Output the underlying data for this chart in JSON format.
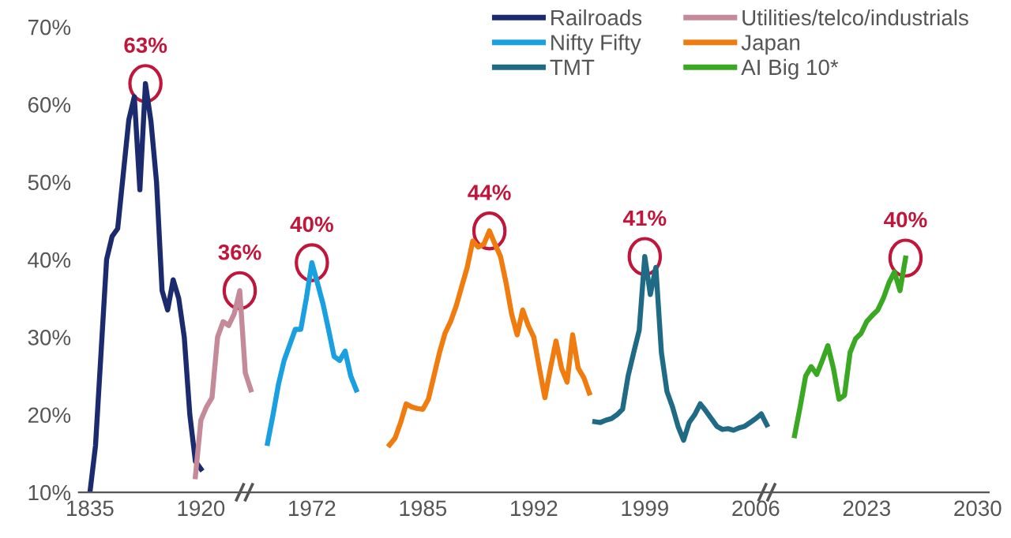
{
  "chart_data": {
    "type": "line",
    "categories": [
      "1835",
      null,
      null,
      null,
      null,
      null,
      null,
      null,
      null,
      null,
      null,
      null,
      null,
      null,
      null,
      null,
      null,
      null,
      null,
      null,
      "1920",
      null,
      null,
      null,
      null,
      null,
      null,
      null,
      null,
      null,
      null,
      null,
      null,
      null,
      null,
      null,
      null,
      null,
      null,
      null,
      "1972",
      null,
      null,
      null,
      null,
      null,
      null,
      null,
      null,
      null,
      null,
      null,
      null,
      null,
      null,
      null,
      null,
      null,
      null,
      null,
      "1985",
      null,
      null,
      null,
      null,
      null,
      null,
      null,
      null,
      null,
      null,
      null,
      null,
      null,
      null,
      null,
      null,
      null,
      null,
      null,
      "1992",
      null,
      null,
      null,
      null,
      null,
      null,
      null,
      null,
      null,
      null,
      null,
      null,
      null,
      null,
      null,
      null,
      null,
      null,
      null,
      "1999",
      null,
      null,
      null,
      null,
      null,
      null,
      null,
      null,
      null,
      null,
      null,
      null,
      null,
      null,
      null,
      null,
      null,
      null,
      null,
      "2006",
      null,
      null,
      null,
      null,
      null,
      null,
      null,
      null,
      null,
      null,
      null,
      null,
      null,
      null,
      null,
      null,
      null,
      null,
      null,
      "2023",
      null,
      null,
      null,
      null,
      null,
      null,
      null,
      null,
      null,
      null,
      null,
      null,
      null,
      null,
      null,
      null,
      null,
      null,
      null,
      "2030"
    ],
    "series": [
      {
        "name": "Railroads",
        "color": "#1b2b6e",
        "values": [
          10,
          16,
          28,
          40,
          43,
          44,
          51,
          58,
          61,
          49,
          62.7,
          57.8,
          50,
          36,
          33.5,
          37.4,
          35,
          30,
          20,
          14,
          13,
          null,
          null,
          null,
          null,
          null,
          null,
          null,
          null,
          null,
          null,
          null,
          null,
          null,
          null,
          null,
          null,
          null,
          null,
          null,
          null,
          null,
          null,
          null,
          null,
          null,
          null,
          null,
          null,
          null,
          null,
          null,
          null,
          null,
          null,
          null,
          null,
          null,
          null,
          null,
          null,
          null,
          null,
          null,
          null,
          null,
          null,
          null,
          null,
          null,
          null,
          null,
          null,
          null,
          null,
          null,
          null,
          null,
          null,
          null,
          null,
          null,
          null,
          null,
          null,
          null,
          null,
          null,
          null,
          null,
          null,
          null,
          null,
          null,
          null,
          null,
          null,
          null,
          null,
          null,
          null,
          null,
          null,
          null,
          null,
          null,
          null,
          null,
          null,
          null,
          null,
          null,
          null,
          null,
          null,
          null,
          null,
          null,
          null,
          null,
          null,
          null,
          null,
          null,
          null,
          null,
          null,
          null,
          null,
          null,
          null,
          null,
          null,
          null,
          null,
          null,
          null,
          null,
          null,
          null,
          null,
          null,
          null,
          null,
          null,
          null,
          null,
          null,
          null,
          null,
          null,
          null,
          null,
          null,
          null,
          null,
          null,
          null,
          null,
          null,
          null
        ]
      },
      {
        "name": "Utilities/telco/industrials",
        "color": "#c48a9a",
        "values": [
          null,
          null,
          null,
          null,
          null,
          null,
          null,
          null,
          null,
          null,
          null,
          null,
          null,
          null,
          null,
          null,
          null,
          null,
          null,
          12,
          19.3,
          21,
          22.2,
          30,
          32,
          31.5,
          33,
          36,
          25.4,
          23.2,
          null,
          null,
          null,
          null,
          null,
          null,
          null,
          null,
          null,
          null,
          null,
          null,
          null,
          null,
          null,
          null,
          null,
          null,
          null,
          null,
          null,
          null,
          null,
          null,
          null,
          null,
          null,
          null,
          null,
          null,
          null,
          null,
          null,
          null,
          null,
          null,
          null,
          null,
          null,
          null,
          null,
          null,
          null,
          null,
          null,
          null,
          null,
          null,
          null,
          null,
          null,
          null,
          null,
          null,
          null,
          null,
          null,
          null,
          null,
          null,
          null,
          null,
          null,
          null,
          null,
          null,
          null,
          null,
          null,
          null,
          null,
          null,
          null,
          null,
          null,
          null,
          null,
          null,
          null,
          null,
          null,
          null,
          null,
          null,
          null,
          null,
          null,
          null,
          null,
          null,
          null,
          null,
          null,
          null,
          null,
          null,
          null,
          null,
          null,
          null,
          null,
          null,
          null,
          null,
          null,
          null,
          null,
          null,
          null,
          null,
          null,
          null,
          null,
          null,
          null,
          null,
          null,
          null,
          null,
          null,
          null,
          null,
          null,
          null,
          null,
          null,
          null,
          null,
          null,
          null,
          null
        ]
      },
      {
        "name": "Nifty Fifty",
        "color": "#1aa0e0",
        "values": [
          null,
          null,
          null,
          null,
          null,
          null,
          null,
          null,
          null,
          null,
          null,
          null,
          null,
          null,
          null,
          null,
          null,
          null,
          null,
          null,
          null,
          null,
          null,
          null,
          null,
          null,
          null,
          null,
          null,
          null,
          null,
          null,
          16.3,
          20,
          24,
          27,
          29,
          31,
          31,
          35,
          39.6,
          37,
          34.3,
          31,
          27.5,
          27,
          28.2,
          25,
          23.2,
          null,
          null,
          null,
          null,
          null,
          null,
          null,
          null,
          null,
          null,
          null,
          null,
          null,
          null,
          null,
          null,
          null,
          null,
          null,
          null,
          null,
          null,
          null,
          null,
          null,
          null,
          null,
          null,
          null,
          null,
          null,
          null,
          null,
          null,
          null,
          null,
          null,
          null,
          null,
          null,
          null,
          null,
          null,
          null,
          null,
          null,
          null,
          null,
          null,
          null,
          null,
          null,
          null,
          null,
          null,
          null,
          null,
          null,
          null,
          null,
          null,
          null,
          null,
          null,
          null,
          null,
          null,
          null,
          null,
          null,
          null,
          null,
          null,
          null,
          null,
          null,
          null,
          null,
          null,
          null,
          null,
          null,
          null,
          null,
          null,
          null,
          null,
          null,
          null,
          null,
          null,
          null,
          null,
          null,
          null,
          null,
          null,
          null,
          null,
          null,
          null,
          null,
          null,
          null,
          null,
          null,
          null,
          null,
          null,
          null,
          null,
          null
        ]
      },
      {
        "name": "Japan",
        "color": "#f07c10",
        "values": [
          null,
          null,
          null,
          null,
          null,
          null,
          null,
          null,
          null,
          null,
          null,
          null,
          null,
          null,
          null,
          null,
          null,
          null,
          null,
          null,
          null,
          null,
          null,
          null,
          null,
          null,
          null,
          null,
          null,
          null,
          null,
          null,
          null,
          null,
          null,
          null,
          null,
          null,
          null,
          null,
          null,
          null,
          null,
          null,
          null,
          null,
          null,
          null,
          null,
          null,
          null,
          null,
          null,
          null,
          16.1,
          17,
          19,
          21.4,
          21,
          20.8,
          20.7,
          22,
          25,
          28,
          30.5,
          32,
          34,
          36.5,
          39,
          42.4,
          41.6,
          42,
          43.7,
          42,
          40.4,
          37,
          33,
          30.3,
          33.5,
          31.5,
          30,
          26,
          22.2,
          26,
          29.5,
          26,
          24.2,
          30.3,
          26,
          24.8,
          22.8,
          null,
          null,
          null,
          null,
          null,
          null,
          null,
          null,
          null,
          null,
          null,
          null,
          null,
          null,
          null,
          null,
          null,
          null,
          null,
          null,
          null,
          null,
          null,
          null,
          null,
          null,
          null,
          null,
          null,
          null,
          null,
          null,
          null,
          null,
          null,
          null,
          null,
          null,
          null,
          null,
          null,
          null,
          null,
          null,
          null,
          null,
          null,
          null,
          null,
          null,
          null,
          null,
          null,
          null,
          null,
          null,
          null,
          null,
          null,
          null,
          null,
          null,
          null,
          null,
          null,
          null,
          null,
          null,
          null,
          null
        ]
      },
      {
        "name": "TMT",
        "color": "#1f6b85",
        "values": [
          null,
          null,
          null,
          null,
          null,
          null,
          null,
          null,
          null,
          null,
          null,
          null,
          null,
          null,
          null,
          null,
          null,
          null,
          null,
          null,
          null,
          null,
          null,
          null,
          null,
          null,
          null,
          null,
          null,
          null,
          null,
          null,
          null,
          null,
          null,
          null,
          null,
          null,
          null,
          null,
          null,
          null,
          null,
          null,
          null,
          null,
          null,
          null,
          null,
          null,
          null,
          null,
          null,
          null,
          null,
          null,
          null,
          null,
          null,
          null,
          null,
          null,
          null,
          null,
          null,
          null,
          null,
          null,
          null,
          null,
          null,
          null,
          null,
          null,
          null,
          null,
          null,
          null,
          null,
          null,
          null,
          null,
          null,
          null,
          null,
          null,
          null,
          null,
          null,
          null,
          null,
          19.1,
          19,
          19.3,
          19.5,
          20,
          20.7,
          25,
          28,
          30.9,
          40.4,
          35.5,
          39,
          28,
          23,
          21,
          18.5,
          16.7,
          19,
          20,
          21.4,
          20.5,
          19.5,
          18.5,
          18.1,
          18.2,
          18,
          18.3,
          18.5,
          19,
          19.5,
          20.1,
          18.7,
          null,
          null,
          null,
          null,
          null,
          null,
          null,
          null,
          null,
          null,
          null,
          null,
          null,
          null,
          null,
          null,
          null,
          null,
          null,
          null,
          null,
          null,
          null,
          null,
          null,
          null,
          null,
          null,
          null,
          null,
          null,
          null,
          null,
          null,
          null,
          null,
          null,
          null
        ]
      },
      {
        "name": "AI Big 10*",
        "color": "#3aa822",
        "values": [
          null,
          null,
          null,
          null,
          null,
          null,
          null,
          null,
          null,
          null,
          null,
          null,
          null,
          null,
          null,
          null,
          null,
          null,
          null,
          null,
          null,
          null,
          null,
          null,
          null,
          null,
          null,
          null,
          null,
          null,
          null,
          null,
          null,
          null,
          null,
          null,
          null,
          null,
          null,
          null,
          null,
          null,
          null,
          null,
          null,
          null,
          null,
          null,
          null,
          null,
          null,
          null,
          null,
          null,
          null,
          null,
          null,
          null,
          null,
          null,
          null,
          null,
          null,
          null,
          null,
          null,
          null,
          null,
          null,
          null,
          null,
          null,
          null,
          null,
          null,
          null,
          null,
          null,
          null,
          null,
          null,
          null,
          null,
          null,
          null,
          null,
          null,
          null,
          null,
          null,
          null,
          null,
          null,
          null,
          null,
          null,
          null,
          null,
          null,
          null,
          null,
          null,
          null,
          null,
          null,
          null,
          null,
          null,
          null,
          null,
          null,
          null,
          null,
          null,
          null,
          null,
          null,
          null,
          null,
          null,
          null,
          null,
          null,
          null,
          null,
          null,
          null,
          17.3,
          21,
          25,
          26.2,
          25.2,
          27,
          28.9,
          26,
          22,
          22.5,
          28,
          29.8,
          30.5,
          32,
          32.8,
          33.5,
          35,
          37,
          38.4,
          36,
          40.2,
          null,
          null,
          null,
          null,
          null,
          null,
          null,
          null,
          null,
          null,
          null,
          null,
          null
        ]
      }
    ],
    "annotations": [
      {
        "text": "63%",
        "y": 62.7
      },
      {
        "text": "36%",
        "y": 36
      },
      {
        "text": "40%",
        "x": "1972",
        "y": 39.6
      },
      {
        "text": "44%",
        "y": 43.7
      },
      {
        "text": "41%",
        "x": "1999",
        "y": 40.4
      },
      {
        "text": "40%",
        "y": 40.2
      }
    ],
    "ylim": [
      10,
      70
    ],
    "yticks": [
      {
        "value": 10,
        "label": "10%"
      },
      {
        "value": 20,
        "label": "20%"
      },
      {
        "value": 30,
        "label": "30%"
      },
      {
        "value": 40,
        "label": "40%"
      },
      {
        "value": 50,
        "label": "50%"
      },
      {
        "value": 60,
        "label": "60%"
      },
      {
        "value": 70,
        "label": "70%"
      }
    ],
    "grid": false,
    "legend": "top right",
    "marker": "none",
    "line_style": "solid"
  }
}
